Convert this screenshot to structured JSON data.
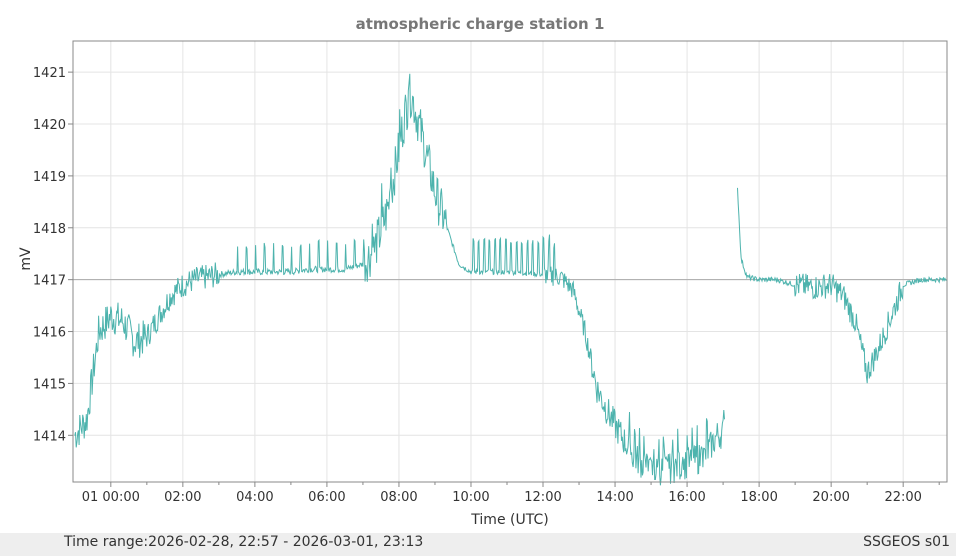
{
  "chart_data": {
    "type": "line",
    "title": "atmospheric charge station 1",
    "xlabel": "Time (UTC)",
    "ylabel": "mV",
    "x_ticks": [
      "01 00:00",
      "02:00",
      "04:00",
      "06:00",
      "08:00",
      "10:00",
      "12:00",
      "14:00",
      "16:00",
      "18:00",
      "20:00",
      "22:00"
    ],
    "y_ticks": [
      "1414",
      "1415",
      "1416",
      "1417",
      "1418",
      "1419",
      "1420",
      "1421"
    ],
    "xlim": [
      "2026-02-28 22:57",
      "2026-03-01 23:13"
    ],
    "ylim": [
      1413.1,
      1421.6
    ],
    "reference_line": 1417,
    "grid": true,
    "line_color": "#4db3ad",
    "gap": [
      "2026-03-01 17:03",
      "2026-03-01 17:23"
    ],
    "series": [
      {
        "x": [
          "2026-02-28 23:00",
          "2026-02-28 23:20",
          "2026-02-28 23:40",
          "2026-03-01 00:00",
          "2026-03-01 00:20",
          "2026-03-01 00:40",
          "2026-03-01 01:00",
          "2026-03-01 01:20",
          "2026-03-01 01:40",
          "2026-03-01 02:00",
          "2026-03-01 02:20",
          "2026-03-01 02:40",
          "2026-03-01 03:00",
          "2026-03-01 03:30",
          "2026-03-01 04:00",
          "2026-03-01 04:30",
          "2026-03-01 05:00",
          "2026-03-01 05:30",
          "2026-03-01 06:00",
          "2026-03-01 06:30",
          "2026-03-01 07:00",
          "2026-03-01 07:20",
          "2026-03-01 07:40",
          "2026-03-01 08:00",
          "2026-03-01 08:10",
          "2026-03-01 08:20",
          "2026-03-01 08:40",
          "2026-03-01 09:00",
          "2026-03-01 09:20",
          "2026-03-01 09:40",
          "2026-03-01 10:00",
          "2026-03-01 11:00",
          "2026-03-01 12:00",
          "2026-03-01 12:30",
          "2026-03-01 12:50",
          "2026-03-01 13:10",
          "2026-03-01 13:30",
          "2026-03-01 13:50",
          "2026-03-01 14:10",
          "2026-03-01 14:30",
          "2026-03-01 15:00",
          "2026-03-01 15:30",
          "2026-03-01 16:00",
          "2026-03-01 16:30",
          "2026-03-01 16:50",
          "2026-03-01 17:00",
          "2026-03-01 17:23",
          "2026-03-01 17:30",
          "2026-03-01 17:40",
          "2026-03-01 18:00",
          "2026-03-01 18:30",
          "2026-03-01 19:00",
          "2026-03-01 19:30",
          "2026-03-01 20:00",
          "2026-03-01 20:20",
          "2026-03-01 20:40",
          "2026-03-01 21:00",
          "2026-03-01 21:20",
          "2026-03-01 21:40",
          "2026-03-01 22:00",
          "2026-03-01 22:30",
          "2026-03-01 23:00",
          "2026-03-01 23:13"
        ],
        "y": [
          1414.0,
          1414.3,
          1416.0,
          1416.3,
          1416.2,
          1415.8,
          1415.9,
          1416.3,
          1416.7,
          1416.9,
          1417.0,
          1417.05,
          1417.1,
          1417.15,
          1417.15,
          1417.15,
          1417.15,
          1417.2,
          1417.2,
          1417.2,
          1417.3,
          1417.6,
          1418.3,
          1419.5,
          1420.2,
          1420.6,
          1419.7,
          1418.7,
          1418.0,
          1417.3,
          1417.15,
          1417.15,
          1417.1,
          1417.05,
          1416.8,
          1416.0,
          1414.9,
          1414.4,
          1414.0,
          1413.6,
          1413.3,
          1413.35,
          1413.45,
          1413.6,
          1414.0,
          1414.05,
          1419.0,
          1417.4,
          1417.05,
          1417.0,
          1417.0,
          1416.9,
          1416.85,
          1416.9,
          1416.7,
          1416.2,
          1415.2,
          1415.7,
          1416.3,
          1416.9,
          1417.0,
          1417.0,
          1417.0
        ]
      }
    ]
  },
  "footer": {
    "time_range": "Time range:2026-02-28, 22:57 - 2026-03-01, 23:13",
    "source": "SSGEOS s01"
  }
}
